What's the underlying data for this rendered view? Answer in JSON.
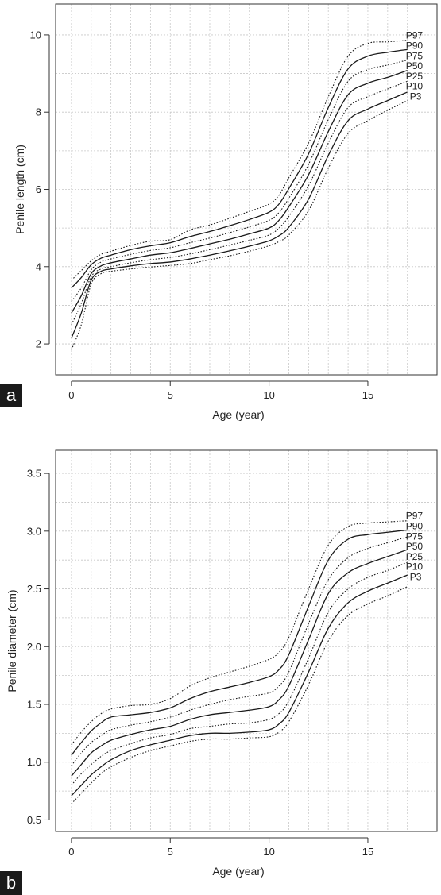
{
  "colors": {
    "line": "#1a1a1a",
    "grid": "#c8c8c8",
    "panel_badge": "#1a1a1a"
  },
  "chart_data": [
    {
      "type": "line",
      "panel": "a",
      "title": "",
      "xlabel": "Age (year)",
      "ylabel": "Penile length (cm)",
      "xlim": [
        -0.8,
        18.5
      ],
      "ylim": [
        1.2,
        10.8
      ],
      "x_ticks": [
        0,
        5,
        10,
        15
      ],
      "y_ticks": [
        2,
        4,
        6,
        8,
        10
      ],
      "x_tick_labels": [
        "0",
        "5",
        "10",
        "15"
      ],
      "y_tick_labels": [
        "2",
        "4",
        "6",
        "8",
        "10"
      ],
      "grid": true,
      "x": [
        0,
        0.5,
        1,
        1.5,
        2,
        3,
        4,
        5,
        6,
        7,
        8,
        9,
        10,
        10.5,
        11,
        12,
        13,
        14,
        15,
        16,
        17
      ],
      "series": [
        {
          "name": "P97",
          "style": "dotted",
          "values": [
            3.65,
            3.9,
            4.15,
            4.32,
            4.4,
            4.55,
            4.66,
            4.7,
            4.95,
            5.08,
            5.25,
            5.43,
            5.62,
            5.85,
            6.3,
            7.2,
            8.4,
            9.45,
            9.78,
            9.82,
            9.86
          ]
        },
        {
          "name": "P90",
          "style": "solid",
          "values": [
            3.45,
            3.72,
            4.05,
            4.22,
            4.3,
            4.44,
            4.54,
            4.62,
            4.78,
            4.91,
            5.06,
            5.22,
            5.41,
            5.62,
            6.02,
            6.92,
            8.12,
            9.12,
            9.45,
            9.55,
            9.62
          ]
        },
        {
          "name": "P75",
          "style": "dotted",
          "values": [
            3.1,
            3.45,
            3.92,
            4.12,
            4.2,
            4.32,
            4.42,
            4.49,
            4.62,
            4.74,
            4.88,
            5.03,
            5.2,
            5.4,
            5.77,
            6.65,
            7.81,
            8.8,
            9.1,
            9.22,
            9.35
          ]
        },
        {
          "name": "P50",
          "style": "solid",
          "values": [
            2.8,
            3.25,
            3.82,
            4.02,
            4.1,
            4.2,
            4.3,
            4.36,
            4.47,
            4.59,
            4.71,
            4.85,
            5.0,
            5.2,
            5.55,
            6.38,
            7.5,
            8.45,
            8.75,
            8.9,
            9.08
          ]
        },
        {
          "name": "P25",
          "style": "dotted",
          "values": [
            2.5,
            3.05,
            3.74,
            3.94,
            4.0,
            4.1,
            4.18,
            4.24,
            4.33,
            4.44,
            4.56,
            4.68,
            4.82,
            5.0,
            5.3,
            6.1,
            7.2,
            8.12,
            8.4,
            8.6,
            8.8
          ]
        },
        {
          "name": "P10",
          "style": "solid",
          "values": [
            2.15,
            2.8,
            3.65,
            3.88,
            3.94,
            4.02,
            4.08,
            4.12,
            4.2,
            4.3,
            4.41,
            4.53,
            4.67,
            4.8,
            5.02,
            5.75,
            6.88,
            7.78,
            8.08,
            8.3,
            8.52
          ]
        },
        {
          "name": "P3",
          "style": "dotted",
          "values": [
            1.85,
            2.5,
            3.55,
            3.82,
            3.88,
            3.94,
            3.99,
            4.03,
            4.08,
            4.18,
            4.28,
            4.4,
            4.54,
            4.65,
            4.82,
            5.45,
            6.55,
            7.45,
            7.78,
            8.05,
            8.3
          ]
        }
      ],
      "legend": "line-end labels at right"
    },
    {
      "type": "line",
      "panel": "b",
      "title": "",
      "xlabel": "Age (year)",
      "ylabel": "Penile diameter (cm)",
      "xlim": [
        -0.8,
        18.5
      ],
      "ylim": [
        0.4,
        3.7
      ],
      "x_ticks": [
        0,
        5,
        10,
        15
      ],
      "y_ticks": [
        0.5,
        1.0,
        1.5,
        2.0,
        2.5,
        3.0,
        3.5
      ],
      "x_tick_labels": [
        "0",
        "5",
        "10",
        "15"
      ],
      "y_tick_labels": [
        "0.5",
        "1.0",
        "1.5",
        "2.0",
        "2.5",
        "3.0",
        "3.5"
      ],
      "grid": true,
      "x": [
        0,
        0.5,
        1,
        1.5,
        2,
        3,
        4,
        5,
        6,
        7,
        8,
        9,
        10,
        10.5,
        11,
        12,
        13,
        14,
        15,
        16,
        17
      ],
      "series": [
        {
          "name": "P97",
          "style": "dotted",
          "values": [
            1.15,
            1.26,
            1.35,
            1.42,
            1.46,
            1.49,
            1.5,
            1.55,
            1.66,
            1.73,
            1.78,
            1.83,
            1.89,
            1.95,
            2.08,
            2.5,
            2.88,
            3.04,
            3.07,
            3.08,
            3.09
          ]
        },
        {
          "name": "P90",
          "style": "solid",
          "values": [
            1.06,
            1.17,
            1.27,
            1.34,
            1.39,
            1.41,
            1.43,
            1.47,
            1.55,
            1.61,
            1.65,
            1.69,
            1.74,
            1.8,
            1.93,
            2.35,
            2.75,
            2.93,
            2.97,
            2.99,
            3.01
          ]
        },
        {
          "name": "P75",
          "style": "dotted",
          "values": [
            0.97,
            1.08,
            1.17,
            1.23,
            1.28,
            1.32,
            1.35,
            1.39,
            1.45,
            1.5,
            1.54,
            1.57,
            1.6,
            1.66,
            1.78,
            2.2,
            2.58,
            2.77,
            2.85,
            2.9,
            2.95
          ]
        },
        {
          "name": "P50",
          "style": "solid",
          "values": [
            0.88,
            0.98,
            1.08,
            1.14,
            1.19,
            1.24,
            1.28,
            1.31,
            1.37,
            1.41,
            1.43,
            1.45,
            1.48,
            1.54,
            1.66,
            2.06,
            2.46,
            2.64,
            2.72,
            2.78,
            2.84
          ]
        },
        {
          "name": "P25",
          "style": "dotted",
          "values": [
            0.8,
            0.9,
            0.98,
            1.05,
            1.1,
            1.16,
            1.21,
            1.24,
            1.29,
            1.31,
            1.33,
            1.34,
            1.37,
            1.42,
            1.53,
            1.9,
            2.3,
            2.5,
            2.6,
            2.66,
            2.73
          ]
        },
        {
          "name": "P10",
          "style": "solid",
          "values": [
            0.71,
            0.8,
            0.89,
            0.96,
            1.02,
            1.1,
            1.15,
            1.19,
            1.23,
            1.25,
            1.25,
            1.26,
            1.28,
            1.33,
            1.43,
            1.78,
            2.16,
            2.38,
            2.48,
            2.55,
            2.62
          ]
        },
        {
          "name": "P3",
          "style": "dotted",
          "values": [
            0.64,
            0.73,
            0.82,
            0.9,
            0.96,
            1.04,
            1.1,
            1.14,
            1.18,
            1.2,
            1.2,
            1.21,
            1.22,
            1.26,
            1.35,
            1.67,
            2.05,
            2.27,
            2.37,
            2.44,
            2.52
          ]
        }
      ],
      "legend": "line-end labels at right"
    }
  ]
}
